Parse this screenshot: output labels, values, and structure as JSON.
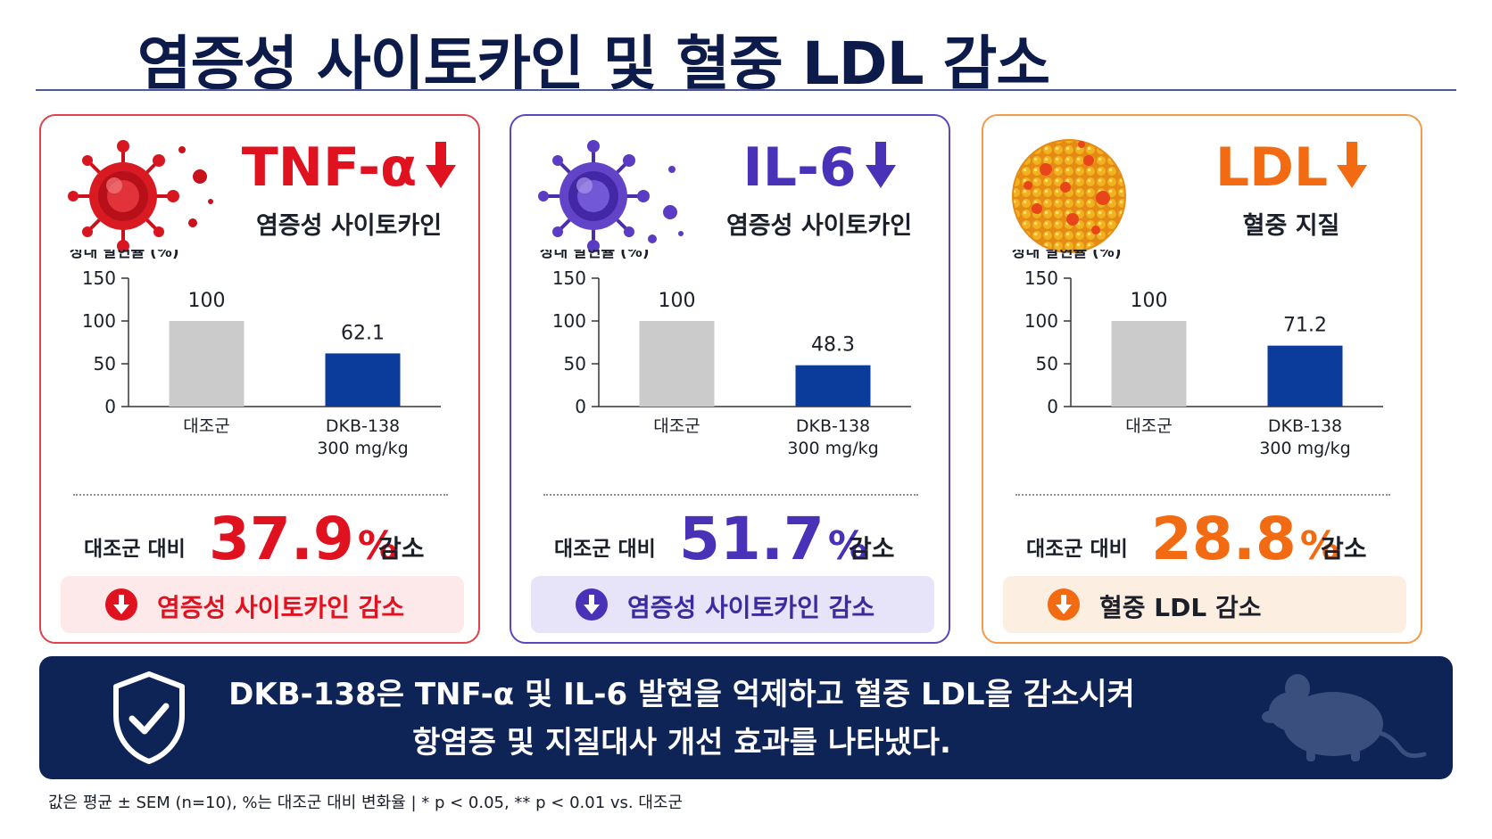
{
  "title": "염증성 사이토카인 및 혈중 LDL 감소",
  "cards": [
    {
      "name": "TNF-α",
      "subtitle": "염증성 사이토카인",
      "icon": "virus-icon",
      "accent": "#e0121f",
      "result_label": "대조군 대비",
      "result_value": "37.9",
      "result_unit": "%",
      "result_suffix": "감소",
      "badge_text": "염증성 사이토카인 감소",
      "badge_bg": "#fde8ea"
    },
    {
      "name": "IL-6",
      "subtitle": "염증성 사이토카인",
      "icon": "virus-icon",
      "accent": "#4a32b8",
      "result_label": "대조군 대비",
      "result_value": "51.7",
      "result_unit": "%",
      "result_suffix": "감소",
      "badge_text": "염증성 사이토카인 감소",
      "badge_bg": "#e7e3f8"
    },
    {
      "name": "LDL",
      "subtitle": "혈중 지질",
      "icon": "lipoprotein-particle-icon",
      "accent": "#f26b12",
      "result_label": "대조군 대비",
      "result_value": "28.8",
      "result_unit": "%",
      "result_suffix": "감소",
      "badge_text": "혈중 LDL 감소",
      "badge_bg": "#fdeee2"
    }
  ],
  "chart_data": [
    {
      "type": "bar",
      "ylabel": "상대 발현율 (%)",
      "ylim": [
        0,
        150
      ],
      "yticks": [
        0,
        50,
        100,
        150
      ],
      "categories": [
        "대조군",
        "DKB-138\n300 mg/kg"
      ],
      "values": [
        100,
        62.1
      ],
      "value_labels": [
        "100",
        "62.1"
      ],
      "colors": [
        "#cbcbcb",
        "#0b3c9c"
      ]
    },
    {
      "type": "bar",
      "ylabel": "상대 발현율 (%)",
      "ylim": [
        0,
        150
      ],
      "yticks": [
        0,
        50,
        100,
        150
      ],
      "categories": [
        "대조군",
        "DKB-138\n300 mg/kg"
      ],
      "values": [
        100,
        48.3
      ],
      "value_labels": [
        "100",
        "48.3"
      ],
      "colors": [
        "#cbcbcb",
        "#0b3c9c"
      ]
    },
    {
      "type": "bar",
      "ylabel": "상대 발현율 (%)",
      "ylim": [
        0,
        150
      ],
      "yticks": [
        0,
        50,
        100,
        150
      ],
      "categories": [
        "대조군",
        "DKB-138\n300 mg/kg"
      ],
      "values": [
        100,
        71.2
      ],
      "value_labels": [
        "100",
        "71.2"
      ],
      "colors": [
        "#cbcbcb",
        "#0b3c9c"
      ]
    }
  ],
  "banner": {
    "line1": "DKB-138은 TNF-α 및 IL-6 발현을 억제하고 혈중 LDL을 감소시켜",
    "line2": "항염증 및 지질대사 개선 효과를 나타냈다.",
    "icon": "shield-check-icon",
    "decor": "mouse-icon"
  },
  "footnote": "값은 평균 ± SEM (n=10), %는 대조군 대비 변화율  |  * p < 0.05, ** p < 0.01 vs. 대조군"
}
